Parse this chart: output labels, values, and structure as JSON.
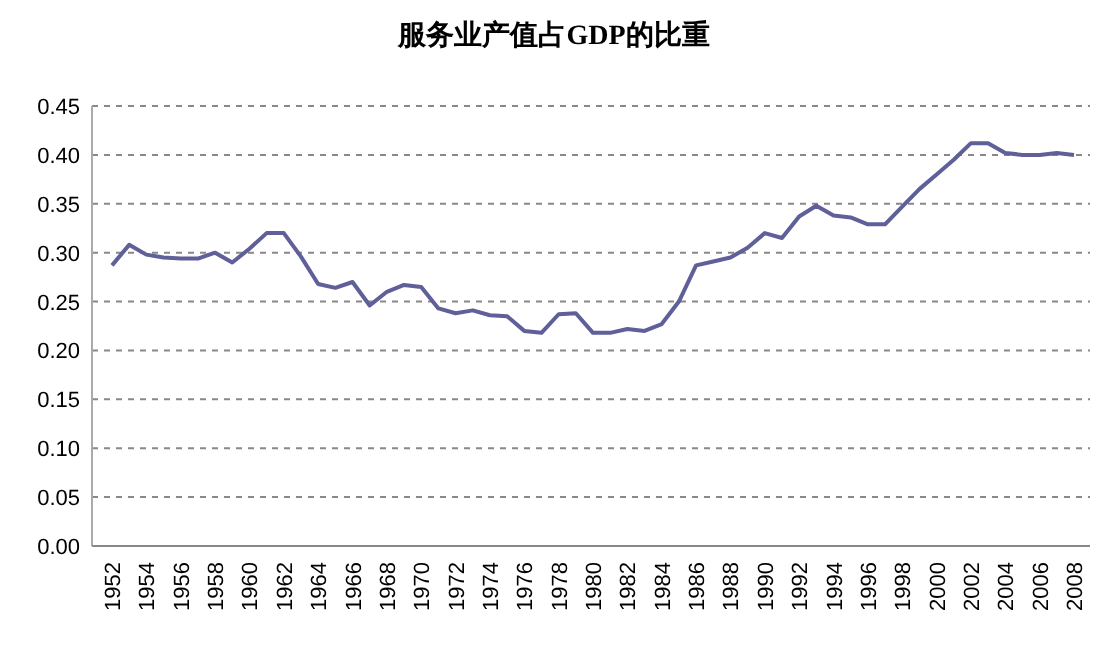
{
  "chart_data": {
    "type": "line",
    "title": "服务业产值占GDP的比重",
    "categories": [
      "1952",
      null,
      "1954",
      null,
      "1956",
      null,
      "1958",
      null,
      "1960",
      null,
      "1962",
      null,
      "1964",
      null,
      "1966",
      null,
      "1968",
      null,
      "1970",
      null,
      "1972",
      null,
      "1974",
      null,
      "1976",
      null,
      "1978",
      null,
      "1980",
      null,
      "1982",
      null,
      "1984",
      null,
      "1986",
      null,
      "1988",
      null,
      "1990",
      null,
      "1992",
      null,
      "1994",
      null,
      "1996",
      null,
      "1998",
      null,
      "2000",
      null,
      "2002",
      null,
      "2004",
      null,
      "2006",
      null,
      "2008"
    ],
    "series": [
      {
        "color": "#5f5f99",
        "values": [
          0.287,
          0.308,
          0.298,
          0.295,
          0.294,
          0.294,
          0.3,
          0.29,
          0.304,
          0.32,
          0.32,
          0.296,
          0.268,
          0.264,
          0.27,
          0.246,
          0.26,
          0.267,
          0.265,
          0.243,
          0.238,
          0.241,
          0.236,
          0.235,
          0.22,
          0.218,
          0.237,
          0.238,
          0.218,
          0.218,
          0.222,
          0.22,
          0.227,
          0.25,
          0.287,
          0.291,
          0.295,
          0.305,
          0.32,
          0.315,
          0.337,
          0.348,
          0.338,
          0.336,
          0.329,
          0.329,
          0.347,
          0.365,
          0.38,
          0.395,
          0.412,
          0.412,
          0.402,
          0.4,
          0.4,
          0.402,
          0.4
        ]
      }
    ],
    "ylim": [
      0,
      0.45
    ],
    "yticks": [
      {
        "value": 0,
        "label": "0.00"
      },
      {
        "value": 0.05,
        "label": "0.05"
      },
      {
        "value": 0.1,
        "label": "0.10"
      },
      {
        "value": 0.15,
        "label": "0.15"
      },
      {
        "value": 0.2,
        "label": "0.20"
      },
      {
        "value": 0.25,
        "label": "0.25"
      },
      {
        "value": 0.3,
        "label": "0.30"
      },
      {
        "value": 0.35,
        "label": "0.35"
      },
      {
        "value": 0.4,
        "label": "0.40"
      },
      {
        "value": 0.45,
        "label": "0.45"
      }
    ],
    "grid": "y",
    "marker": "none",
    "line_style": "solid"
  }
}
